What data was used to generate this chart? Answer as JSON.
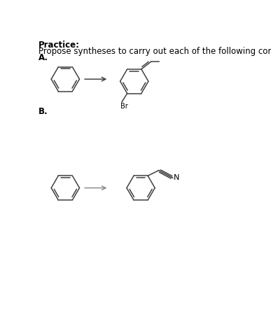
{
  "title_bold": "Practice:",
  "subtitle": "Propose syntheses to carry out each of the following conversions.",
  "label_A": "A.",
  "label_B": "B.",
  "bg_color": "#ffffff",
  "text_color": "#000000",
  "line_color": "#404040",
  "font_size_title": 8.5,
  "font_size_label": 8.5,
  "font_size_sub": 8.5,
  "arrow_color": "#444444",
  "lw": 1.1
}
